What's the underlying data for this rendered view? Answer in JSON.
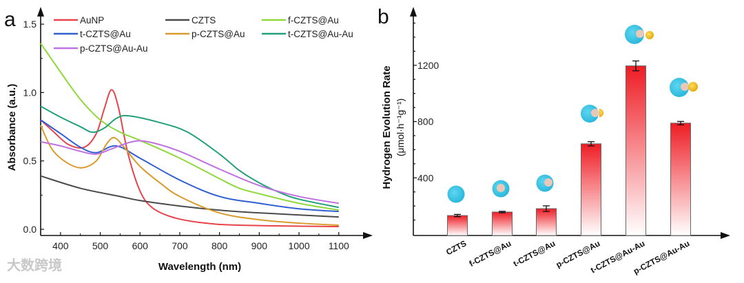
{
  "watermark": "大数跨境",
  "chart_data": [
    {
      "panel_label": "a",
      "type": "line",
      "xlabel": "Wavelength (nm)",
      "ylabel": "Absorbance (a.u.)",
      "xlim": [
        350,
        1100
      ],
      "ylim": [
        -0.05,
        1.6
      ],
      "xticks": [
        "400",
        "500",
        "600",
        "700",
        "800",
        "900",
        "1000",
        "1100"
      ],
      "xtick_values": [
        400,
        500,
        600,
        700,
        800,
        900,
        1000,
        1100
      ],
      "yticks": [
        "0.0",
        "0.5",
        "1.0",
        "1.5"
      ],
      "ytick_values": [
        0,
        0.5,
        1.0,
        1.5
      ],
      "legend_placement": "top",
      "series": [
        {
          "name": "AuNP",
          "color": "#e8424a",
          "x": [
            350,
            380,
            420,
            460,
            490,
            510,
            528,
            545,
            570,
            600,
            630,
            680,
            750,
            850,
            1100
          ],
          "y": [
            0.8,
            0.72,
            0.62,
            0.6,
            0.7,
            0.88,
            1.02,
            0.9,
            0.55,
            0.28,
            0.16,
            0.09,
            0.05,
            0.03,
            0.02
          ]
        },
        {
          "name": "CZTS",
          "color": "#4a4a4a",
          "x": [
            350,
            450,
            550,
            600,
            700,
            800,
            900,
            1100
          ],
          "y": [
            0.39,
            0.3,
            0.24,
            0.21,
            0.17,
            0.14,
            0.12,
            0.09
          ]
        },
        {
          "name": "f-CZTS@Au",
          "color": "#8ed83a",
          "x": [
            350,
            400,
            450,
            500,
            550,
            600,
            700,
            800,
            850,
            900,
            1000,
            1100
          ],
          "y": [
            1.36,
            1.15,
            0.95,
            0.8,
            0.71,
            0.65,
            0.52,
            0.37,
            0.3,
            0.26,
            0.19,
            0.14
          ]
        },
        {
          "name": "t-CZTS@Au",
          "color": "#2f5fd0",
          "x": [
            350,
            400,
            450,
            490,
            540,
            600,
            700,
            800,
            900,
            1000,
            1100
          ],
          "y": [
            0.8,
            0.7,
            0.6,
            0.56,
            0.61,
            0.52,
            0.36,
            0.24,
            0.19,
            0.15,
            0.13
          ]
        },
        {
          "name": "p-CZTS@Au",
          "color": "#d99a2b",
          "x": [
            350,
            380,
            420,
            455,
            490,
            515,
            535,
            560,
            600,
            650,
            700,
            800,
            900,
            1000,
            1100
          ],
          "y": [
            0.76,
            0.58,
            0.48,
            0.45,
            0.5,
            0.62,
            0.67,
            0.6,
            0.46,
            0.34,
            0.24,
            0.12,
            0.07,
            0.045,
            0.03
          ]
        },
        {
          "name": "t-CZTS@Au-Au",
          "color": "#22a07a",
          "x": [
            350,
            400,
            450,
            480,
            510,
            540,
            570,
            650,
            720,
            800,
            850,
            900,
            950,
            1000,
            1100
          ],
          "y": [
            0.9,
            0.82,
            0.75,
            0.71,
            0.74,
            0.81,
            0.83,
            0.78,
            0.71,
            0.55,
            0.43,
            0.34,
            0.27,
            0.22,
            0.16
          ]
        },
        {
          "name": "p-CZTS@Au-Au",
          "color": "#c070e0",
          "x": [
            350,
            400,
            450,
            490,
            530,
            580,
            620,
            700,
            800,
            900,
            1000,
            1100
          ],
          "y": [
            0.64,
            0.61,
            0.57,
            0.55,
            0.59,
            0.64,
            0.64,
            0.57,
            0.44,
            0.32,
            0.24,
            0.19
          ]
        }
      ]
    },
    {
      "panel_label": "b",
      "type": "bar",
      "ylabel": "Hydrogen Evolution Rate",
      "ylabel_unit": "(μmol·h⁻¹g⁻¹)",
      "ylim": [
        0,
        1600
      ],
      "yticks": [
        "400",
        "800",
        "1200"
      ],
      "ytick_values": [
        400,
        800,
        1200
      ],
      "categories": [
        "CZTS",
        "f-CZTS@Au",
        "t-CZTS@Au",
        "p-CZTS@Au",
        "t-CZTS@Au-Au",
        "p-CZTS@Au-Au"
      ],
      "values": [
        132,
        157,
        181,
        642,
        1196,
        789
      ],
      "errors": [
        8,
        5,
        20,
        15,
        35,
        12
      ],
      "bar_color_top": "#ee1c24",
      "bar_color_bottom": "#ffffff",
      "icon_shell_color": "#3cc6e6",
      "icon_core_color": "#e8c8b8",
      "icon_gold_color": "#f5c518"
    }
  ]
}
